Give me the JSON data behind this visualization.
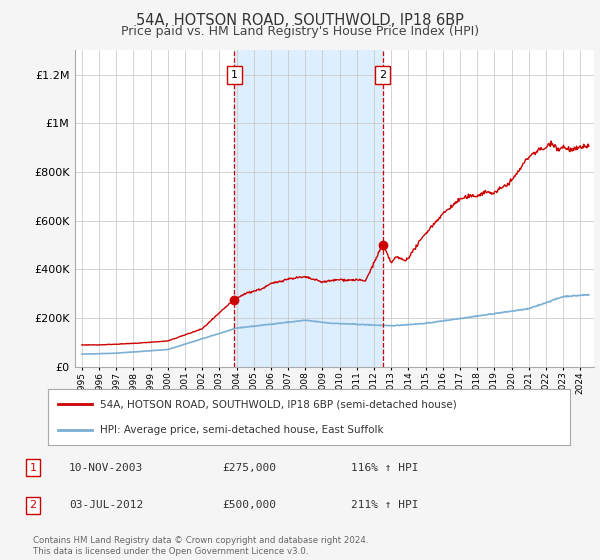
{
  "title": "54A, HOTSON ROAD, SOUTHWOLD, IP18 6BP",
  "subtitle": "Price paid vs. HM Land Registry's House Price Index (HPI)",
  "ylim": [
    0,
    1300000
  ],
  "yticks": [
    0,
    200000,
    400000,
    600000,
    800000,
    1000000,
    1200000
  ],
  "ytick_labels": [
    "£0",
    "£200K",
    "£400K",
    "£600K",
    "£800K",
    "£1M",
    "£1.2M"
  ],
  "sale1_year": 2003.86,
  "sale1_price": 275000,
  "sale2_year": 2012.5,
  "sale2_price": 500000,
  "red_color": "#cc0000",
  "blue_color": "#7bafd4",
  "shaded_color": "#ddeeff",
  "legend_red_label": "54A, HOTSON ROAD, SOUTHWOLD, IP18 6BP (semi-detached house)",
  "legend_blue_label": "HPI: Average price, semi-detached house, East Suffolk",
  "annotation1_date": "10-NOV-2003",
  "annotation1_price": "£275,000",
  "annotation1_hpi": "116% ↑ HPI",
  "annotation2_date": "03-JUL-2012",
  "annotation2_price": "£500,000",
  "annotation2_hpi": "211% ↑ HPI",
  "footer": "Contains HM Land Registry data © Crown copyright and database right 2024.\nThis data is licensed under the Open Government Licence v3.0.",
  "bg_color": "#f5f5f5",
  "plot_bg_color": "#ffffff",
  "grid_color": "#cccccc",
  "title_fontsize": 10.5,
  "subtitle_fontsize": 9
}
